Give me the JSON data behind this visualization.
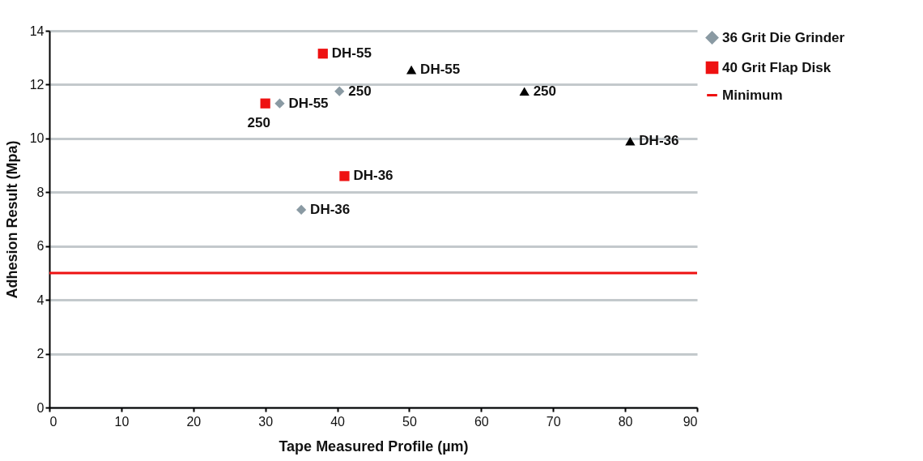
{
  "chart_data": {
    "type": "scatter",
    "xlabel": "Tape Measured Profile (µm)",
    "ylabel": "Adhesion Result (Mpa)",
    "xlim": [
      0,
      90
    ],
    "xticks": [
      0,
      10,
      20,
      30,
      40,
      50,
      60,
      70,
      80,
      90
    ],
    "ylim": [
      0,
      14
    ],
    "yticks": [
      0,
      2,
      4,
      6,
      8,
      10,
      12,
      14
    ],
    "grid": "y",
    "legend": "right",
    "series": [
      {
        "name": "36 Grit Die Grinder",
        "color": "#8a9aa3",
        "marker": "diamond",
        "x": [
          32,
          40.3,
          35
        ],
        "values": [
          11.3,
          11.75,
          7.35
        ]
      },
      {
        "name": "40 Grit Flap Disk",
        "color": "#ee1111",
        "marker": "square",
        "x": [
          38,
          30,
          41
        ],
        "values": [
          13.15,
          11.3,
          8.6
        ]
      },
      {
        "color": "#000000",
        "marker": "triangle",
        "x": [
          50.3,
          66,
          80.7
        ],
        "values": [
          12.55,
          11.75,
          9.9
        ]
      }
    ],
    "ref_lines": [
      {
        "axis": "y",
        "value": 5,
        "label": "Minimum",
        "color": "#ee1111"
      }
    ],
    "annotations": [
      {
        "text": "DH-55",
        "x": 32,
        "y": 11.3
      },
      {
        "text": "250",
        "x": 40.3,
        "y": 11.75
      },
      {
        "text": "DH-36",
        "x": 35,
        "y": 7.35
      },
      {
        "text": "DH-55",
        "x": 38,
        "y": 13.15
      },
      {
        "text": "250",
        "x": 30,
        "y": 11.3
      },
      {
        "text": "DH-36",
        "x": 41,
        "y": 8.6
      },
      {
        "text": "DH-55",
        "x": 50.3,
        "y": 12.55
      },
      {
        "text": "250",
        "x": 66,
        "y": 11.75
      },
      {
        "text": "DH-36",
        "x": 80.7,
        "y": 9.9
      }
    ]
  }
}
